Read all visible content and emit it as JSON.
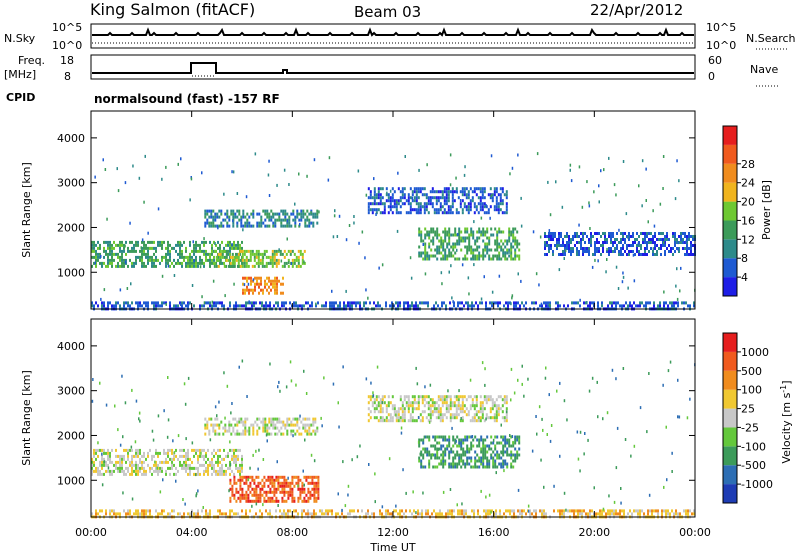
{
  "header": {
    "station": "King Salmon (fitACF)",
    "beam": "Beam 03",
    "date": "22/Apr/2012"
  },
  "nsky_panel": {
    "left_label": "N.Sky",
    "left_ticks": [
      "10^5",
      "10^0"
    ],
    "right_label": "N.Search",
    "right_ticks": [
      "10^5",
      "10^0"
    ]
  },
  "freq_panel": {
    "left_label_1": "Freq.",
    "left_label_2": "[MHz]",
    "left_ticks": [
      "18",
      "8"
    ],
    "right_label": "Nave",
    "right_ticks": [
      "60",
      "0"
    ]
  },
  "cpid": {
    "label": "CPID",
    "text": "normalsound (fast) -157 RF"
  },
  "chart_data": [
    {
      "type": "heatmap",
      "title": "",
      "quantity": "Power",
      "ylabel": "Slant Range [km]",
      "yticks": [
        1000,
        2000,
        3000,
        4000
      ],
      "ylim": [
        180,
        4600
      ],
      "xlim_hours": [
        0,
        24
      ],
      "colorbar": {
        "label": "Power [dB]",
        "ticks": [
          "4",
          "8",
          "12",
          "16",
          "20",
          "24",
          "28"
        ],
        "colors": [
          "#1e1ee6",
          "#1e5ad2",
          "#2d8a8a",
          "#3c9b5a",
          "#6ec832",
          "#f0b41e",
          "#f08c1e",
          "#f05a1e",
          "#e61e1e"
        ]
      },
      "regions": [
        {
          "t": [
            0.0,
            6.0
          ],
          "r": [
            1150,
            1700
          ],
          "level": 3
        },
        {
          "t": [
            4.8,
            8.5
          ],
          "r": [
            1100,
            1500
          ],
          "level": 4
        },
        {
          "t": [
            6.0,
            7.6
          ],
          "r": [
            550,
            900
          ],
          "level": 6
        },
        {
          "t": [
            4.5,
            9.0
          ],
          "r": [
            2000,
            2400
          ],
          "level": 2
        },
        {
          "t": [
            13.0,
            17.0
          ],
          "r": [
            1300,
            2000
          ],
          "level": 3
        },
        {
          "t": [
            11.0,
            16.5
          ],
          "r": [
            2300,
            2900
          ],
          "level": 1
        },
        {
          "t": [
            18.0,
            24.0
          ],
          "r": [
            1400,
            1900
          ],
          "level": 1
        },
        {
          "t": [
            0.0,
            24.0
          ],
          "r": [
            200,
            350
          ],
          "level": 1
        }
      ]
    },
    {
      "type": "heatmap",
      "title": "",
      "quantity": "Velocity",
      "ylabel": "Slant Range [km]",
      "yticks": [
        1000,
        2000,
        3000,
        4000
      ],
      "ylim": [
        180,
        4600
      ],
      "xlim_hours": [
        0,
        24
      ],
      "xlabel": "Time UT",
      "xticks": [
        "00:00",
        "04:00",
        "08:00",
        "12:00",
        "16:00",
        "20:00",
        "00:00"
      ],
      "colorbar": {
        "label": "Velocity [m s^-1]",
        "ticks": [
          "1000",
          "500",
          "100",
          "25",
          "-25",
          "-100",
          "-500",
          "-1000"
        ],
        "colors": [
          "#1e3cb4",
          "#2d6eb4",
          "#3c9b5a",
          "#64c83c",
          "#c8c8c8",
          "#f0c832",
          "#f08c1e",
          "#f05a1e",
          "#e61e1e"
        ]
      },
      "regions": [
        {
          "t": [
            0.0,
            6.0
          ],
          "r": [
            1150,
            1700
          ],
          "level": 4
        },
        {
          "t": [
            5.5,
            9.0
          ],
          "r": [
            550,
            1100
          ],
          "level": 7
        },
        {
          "t": [
            13.0,
            17.0
          ],
          "r": [
            1300,
            2000
          ],
          "level": 2
        },
        {
          "t": [
            4.5,
            9.0
          ],
          "r": [
            2000,
            2400
          ],
          "level": 4
        },
        {
          "t": [
            11.0,
            16.5
          ],
          "r": [
            2300,
            2900
          ],
          "level": 4
        },
        {
          "t": [
            0.0,
            24.0
          ],
          "r": [
            200,
            350
          ],
          "level": 5
        }
      ]
    }
  ]
}
